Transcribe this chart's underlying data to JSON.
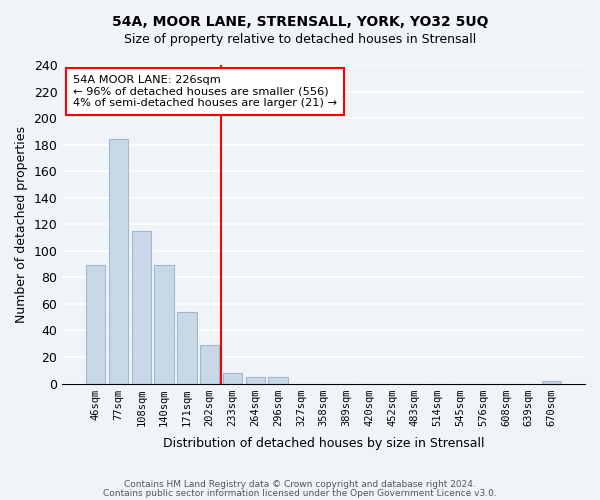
{
  "title": "54A, MOOR LANE, STRENSALL, YORK, YO32 5UQ",
  "subtitle": "Size of property relative to detached houses in Strensall",
  "xlabel": "Distribution of detached houses by size in Strensall",
  "ylabel": "Number of detached properties",
  "bar_labels": [
    "46sqm",
    "77sqm",
    "108sqm",
    "140sqm",
    "171sqm",
    "202sqm",
    "233sqm",
    "264sqm",
    "296sqm",
    "327sqm",
    "358sqm",
    "389sqm",
    "420sqm",
    "452sqm",
    "483sqm",
    "514sqm",
    "545sqm",
    "576sqm",
    "608sqm",
    "639sqm",
    "670sqm"
  ],
  "bar_values": [
    89,
    184,
    115,
    89,
    54,
    29,
    8,
    5,
    5,
    0,
    0,
    0,
    0,
    0,
    0,
    0,
    0,
    0,
    0,
    0,
    2
  ],
  "bar_color": "#c8d8e8",
  "bar_edge_color": "#a0b8cc",
  "vline_x": 6,
  "vline_color": "red",
  "ylim": [
    0,
    240
  ],
  "yticks": [
    0,
    20,
    40,
    60,
    80,
    100,
    120,
    140,
    160,
    180,
    200,
    220,
    240
  ],
  "annotation_title": "54A MOOR LANE: 226sqm",
  "annotation_line1": "← 96% of detached houses are smaller (556)",
  "annotation_line2": "4% of semi-detached houses are larger (21) →",
  "annotation_box_color": "#ffffff",
  "annotation_box_edge": "red",
  "footer1": "Contains HM Land Registry data © Crown copyright and database right 2024.",
  "footer2": "Contains public sector information licensed under the Open Government Licence v3.0.",
  "background_color": "#f0f4f8"
}
